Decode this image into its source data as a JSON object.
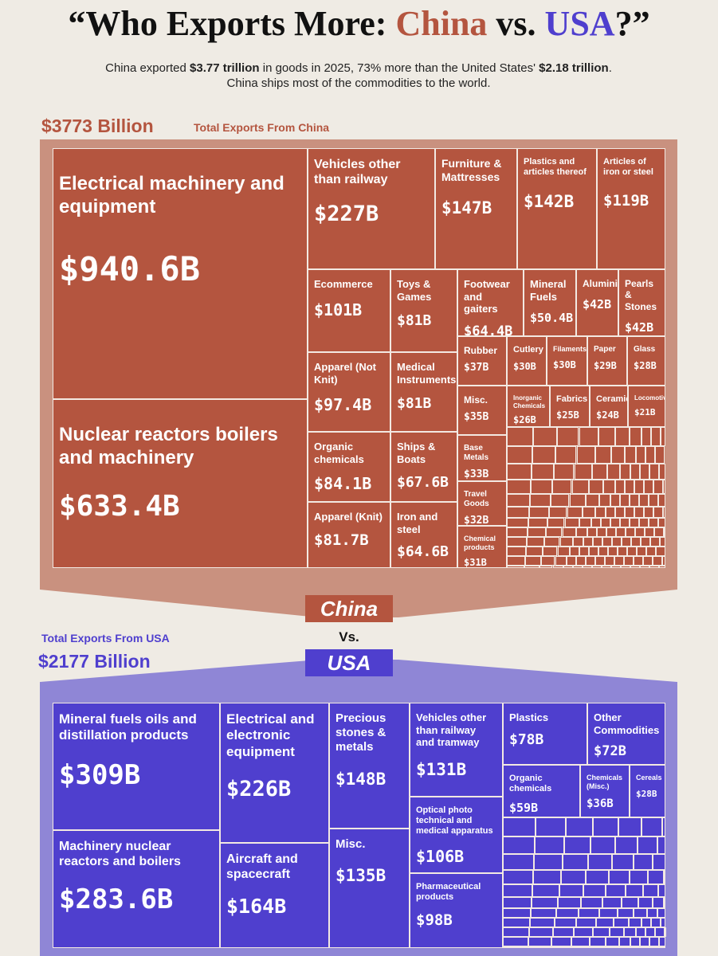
{
  "title": {
    "prefix": "“Who Exports More: ",
    "china": "China",
    "vs": " vs. ",
    "usa": "USA",
    "suffix": "?”"
  },
  "subtitle": {
    "t1": "China exported ",
    "b1": "$3.77 trillion",
    "t2": " in goods in 2025, 73% more than the United States' ",
    "b2": "$2.18 trillion",
    "t3": ". China ships most of the commodities to the world."
  },
  "versus": "Vs.",
  "chart_data": [
    {
      "type": "treemap",
      "title": "Total Exports From China",
      "badge": "China",
      "total": 3773,
      "total_label": "$3773 Billion",
      "color": "#b4553f",
      "categories": [
        "Electrical machinery and equipment",
        "Vehicles other than railway",
        "Furniture & Mattresses",
        "Plastics and articles thereof",
        "Articles of iron or steel",
        "Nuclear reactors boilers and machinery",
        "Ecommerce",
        "Toys & Games",
        "Footwear and gaiters",
        "Mineral Fuels",
        "Aluminium",
        "Pearls & Stones",
        "Apparel (Not Knit)",
        "Medical Instruments",
        "Rubber",
        "Cutlery",
        "Filaments",
        "Paper",
        "Glass",
        "Misc.",
        "Inorganic Chemicals",
        "Fabrics",
        "Ceramic",
        "Locomotives",
        "Organic chemicals",
        "Ships & Boats",
        "Base Metals",
        "Travel Goods",
        "Apparel (Knit)",
        "Iron and steel",
        "Chemical products"
      ],
      "values": [
        940.6,
        227,
        147,
        142,
        119,
        633.4,
        101,
        81,
        64.4,
        50.4,
        42,
        42,
        97.4,
        81,
        37,
        30,
        30,
        29,
        28,
        35,
        26,
        25,
        24,
        21,
        84.1,
        67.6,
        33,
        32,
        81.7,
        64.6,
        31
      ],
      "value_labels": [
        "$940.6B",
        "$227B",
        "$147B",
        "$142B",
        "$119B",
        "$633.4B",
        "$101B",
        "$81B",
        "$64.4B",
        "$50.4B",
        "$42B",
        "$42B",
        "$97.4B",
        "$81B",
        "$37B",
        "$30B",
        "$30B",
        "$29B",
        "$28B",
        "$35B",
        "$26B",
        "$25B",
        "$24B",
        "$21B",
        "$84.1B",
        "$67.6B",
        "$33B",
        "$32B",
        "$81.7B",
        "$64.6B",
        "$31B"
      ]
    },
    {
      "type": "treemap",
      "title": "Total Exports From USA",
      "badge": "USA",
      "total": 2177,
      "total_label": "$2177 Billion",
      "color": "#4f3fce",
      "categories": [
        "Mineral fuels oils and distillation products",
        "Machinery nuclear reactors and boilers",
        "Electrical and electronic equipment",
        "Aircraft and spacecraft",
        "Precious stones & metals",
        "Misc.",
        "Vehicles other than railway and tramway",
        "Optical photo technical and medical apparatus",
        "Pharmaceutical products",
        "Plastics",
        "Other Commodities",
        "Organic chemicals",
        "Chemicals (Misc.)",
        "Cereals"
      ],
      "values": [
        309,
        283.6,
        226,
        164,
        148,
        135,
        131,
        106,
        98,
        78,
        72,
        59,
        36,
        28
      ],
      "value_labels": [
        "$309B",
        "$283.6B",
        "$226B",
        "$164B",
        "$148B",
        "$135B",
        "$131B",
        "$106B",
        "$98B",
        "$78B",
        "$72B",
        "$59B",
        "$36B",
        "$28B"
      ]
    }
  ]
}
